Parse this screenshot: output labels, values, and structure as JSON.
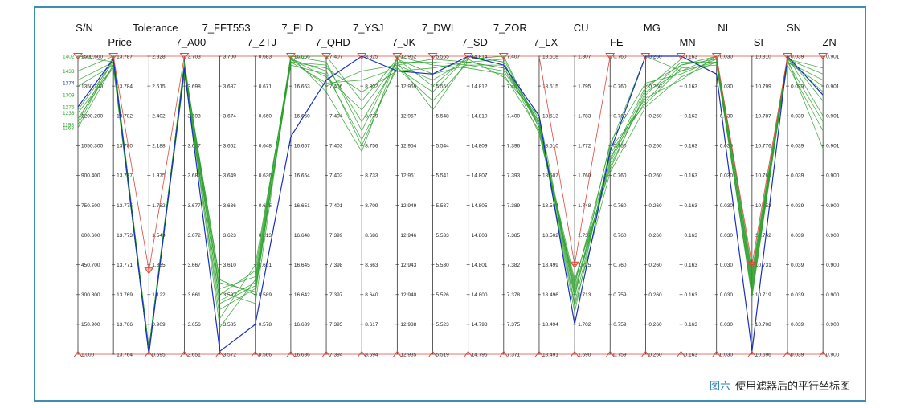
{
  "chart_data": {
    "type": "parallel-coordinates",
    "caption_figure": "图六",
    "caption_text": "使用滤器后的平行坐标图",
    "colors": {
      "selected": "#1a2fbf",
      "others": "#2aa02a",
      "filter": "#e0483a",
      "axis": "#333333"
    },
    "axes": [
      {
        "name": "S/N",
        "ticks": [
          "1500.600",
          "1350.100",
          "1200.200",
          "1050.300",
          "900.400",
          "750.500",
          "600.600",
          "450.700",
          "300.800",
          "150.900",
          "1.000"
        ],
        "extra_labels": [
          "1402",
          "1433",
          "1374",
          "1309",
          "1275",
          "1236",
          "1198",
          "1168"
        ],
        "filter_top": true,
        "filter_bottom": true
      },
      {
        "name": "Price",
        "ticks": [
          "13.787",
          "13.784",
          "13.782",
          "13.780",
          "13.777",
          "13.775",
          "13.773",
          "13.771",
          "13.769",
          "13.766",
          "13.764"
        ],
        "filter_top": true,
        "filter_bottom": false
      },
      {
        "name": "Tolerance",
        "ticks": [
          "2.828",
          "2.615",
          "2.402",
          "2.188",
          "1.975",
          "1.762",
          "1.549",
          "1.335",
          "1.122",
          "0.909",
          "0.695"
        ],
        "filter_top": false,
        "filter_mid": 0.72,
        "filter_bottom": true
      },
      {
        "name": "7_A00",
        "ticks": [
          "3.703",
          "3.698",
          "3.693",
          "3.687",
          "3.682",
          "3.677",
          "3.672",
          "3.667",
          "3.661",
          "3.656",
          "3.651"
        ],
        "filter_top": true,
        "filter_bottom": true
      },
      {
        "name": "7_FFT553",
        "ticks": [
          "3.700",
          "3.687",
          "3.674",
          "3.662",
          "3.649",
          "3.636",
          "3.623",
          "3.610",
          "3.597",
          "3.585",
          "3.572"
        ],
        "filter_top": false,
        "filter_bottom": true
      },
      {
        "name": "7_ZTJ",
        "ticks": [
          "0.683",
          "0.671",
          "0.660",
          "0.648",
          "0.636",
          "0.625",
          "0.613",
          "0.601",
          "0.589",
          "0.578",
          "0.566"
        ],
        "filter_top": false,
        "filter_bottom": true
      },
      {
        "name": "7_FLD",
        "ticks": [
          "16.666",
          "16.663",
          "16.660",
          "16.657",
          "16.654",
          "16.651",
          "16.648",
          "16.645",
          "16.642",
          "16.639",
          "16.636"
        ],
        "filter_top": true,
        "filter_bottom": true
      },
      {
        "name": "7_QHD",
        "ticks": [
          "7.407",
          "7.406",
          "7.404",
          "7.403",
          "7.402",
          "7.401",
          "7.399",
          "7.398",
          "7.397",
          "7.395",
          "7.394"
        ],
        "filter_top": true,
        "filter_bottom": true
      },
      {
        "name": "7_YSJ",
        "ticks": [
          "8.825",
          "8.802",
          "8.779",
          "8.756",
          "8.733",
          "8.709",
          "8.686",
          "8.663",
          "8.640",
          "8.617",
          "8.594"
        ],
        "filter_top": true,
        "filter_bottom": true
      },
      {
        "name": "7_JK",
        "ticks": [
          "12.962",
          "12.959",
          "12.957",
          "12.954",
          "12.951",
          "12.949",
          "12.946",
          "12.943",
          "12.940",
          "12.938",
          "12.935"
        ],
        "filter_top": true,
        "filter_bottom": true
      },
      {
        "name": "7_DWL",
        "ticks": [
          "5.555",
          "5.551",
          "5.548",
          "5.544",
          "5.541",
          "5.537",
          "5.533",
          "5.530",
          "5.526",
          "5.523",
          "5.519"
        ],
        "filter_top": true,
        "filter_bottom": true
      },
      {
        "name": "7_SD",
        "ticks": [
          "14.814",
          "14.812",
          "14.810",
          "14.809",
          "14.807",
          "14.805",
          "14.803",
          "14.801",
          "14.800",
          "14.798",
          "14.796"
        ],
        "filter_top": true,
        "filter_bottom": true
      },
      {
        "name": "7_ZOR",
        "ticks": [
          "7.407",
          "7.403",
          "7.400",
          "7.396",
          "7.393",
          "7.389",
          "7.385",
          "7.382",
          "7.378",
          "7.375",
          "7.371"
        ],
        "filter_top": true,
        "filter_bottom": true
      },
      {
        "name": "7_LX",
        "ticks": [
          "18.518",
          "18.515",
          "18.513",
          "18.510",
          "18.507",
          "18.504",
          "18.502",
          "18.499",
          "18.496",
          "18.494",
          "18.491"
        ],
        "filter_top": false,
        "filter_bottom": true
      },
      {
        "name": "CU",
        "ticks": [
          "1.807",
          "1.795",
          "1.783",
          "1.772",
          "1.760",
          "1.748",
          "1.737",
          "1.725",
          "1.713",
          "1.702",
          "1.690"
        ],
        "filter_top": false,
        "filter_mid": 0.7,
        "filter_bottom": true
      },
      {
        "name": "FE",
        "ticks": [
          "0.760",
          "0.760",
          "0.760",
          "0.760",
          "0.760",
          "0.760",
          "0.760",
          "0.760",
          "0.759",
          "0.759",
          "0.759"
        ],
        "filter_top": true,
        "filter_bottom": true
      },
      {
        "name": "MG",
        "ticks": [
          "0.260",
          "0.260",
          "0.260",
          "0.260",
          "0.260",
          "0.260",
          "0.260",
          "0.260",
          "0.260",
          "0.260",
          "0.260"
        ],
        "filter_top": true,
        "filter_bottom": true
      },
      {
        "name": "MN",
        "ticks": [
          "0.163",
          "0.163",
          "0.163",
          "0.163",
          "0.163",
          "0.163",
          "0.163",
          "0.163",
          "0.163",
          "0.163",
          "0.163"
        ],
        "filter_top": true,
        "filter_bottom": true
      },
      {
        "name": "NI",
        "ticks": [
          "0.030",
          "0.030",
          "0.030",
          "0.030",
          "0.030",
          "0.030",
          "0.030",
          "0.030",
          "0.030",
          "0.030",
          "0.030"
        ],
        "filter_top": true,
        "filter_bottom": true
      },
      {
        "name": "SI",
        "ticks": [
          "10.810",
          "10.799",
          "10.787",
          "10.776",
          "10.765",
          "10.753",
          "10.742",
          "10.731",
          "10.719",
          "10.708",
          "10.696"
        ],
        "filter_top": false,
        "filter_mid": 0.7,
        "filter_bottom": true
      },
      {
        "name": "SN",
        "ticks": [
          "0.039",
          "0.039",
          "0.039",
          "0.039",
          "0.039",
          "0.039",
          "0.039",
          "0.039",
          "0.039",
          "0.039",
          "0.039"
        ],
        "filter_top": true,
        "filter_bottom": true
      },
      {
        "name": "ZN",
        "ticks": [
          "0.901",
          "0.901",
          "0.901",
          "0.901",
          "0.900",
          "0.900",
          "0.900",
          "0.900",
          "0.900",
          "0.900",
          "0.900"
        ],
        "filter_top": true,
        "filter_bottom": true
      }
    ],
    "series": [
      {
        "selected": true,
        "values": [
          0.17,
          0.01,
          1.0,
          0.04,
          0.99,
          0.9,
          0.27,
          0.08,
          0.0,
          0.05,
          0.06,
          0.0,
          0.03,
          0.2,
          0.9,
          0.32,
          0.0,
          0.0,
          0.06,
          0.99,
          0.0,
          0.13
        ]
      },
      {
        "selected": false,
        "values": [
          0.0,
          0.02,
          0.99,
          0.03,
          0.78,
          0.74,
          0.0,
          0.0,
          0.15,
          0.01,
          0.1,
          0.0,
          0.02,
          0.24,
          0.77,
          0.3,
          0.0,
          0.05,
          0.0,
          0.72,
          0.01,
          0.04
        ]
      },
      {
        "selected": false,
        "values": [
          0.05,
          0.0,
          0.98,
          0.05,
          0.82,
          0.76,
          0.02,
          0.03,
          0.22,
          0.02,
          0.02,
          0.03,
          0.05,
          0.22,
          0.8,
          0.35,
          0.1,
          0.03,
          0.01,
          0.76,
          0.02,
          0.1
        ]
      },
      {
        "selected": false,
        "values": [
          0.1,
          0.03,
          1.0,
          0.02,
          0.8,
          0.72,
          0.01,
          0.1,
          0.05,
          0.03,
          0.08,
          0.01,
          0.0,
          0.24,
          0.75,
          0.38,
          0.12,
          0.05,
          0.02,
          0.8,
          0.0,
          0.2
        ]
      },
      {
        "selected": false,
        "values": [
          0.19,
          0.04,
          0.99,
          0.06,
          0.85,
          0.78,
          0.03,
          0.06,
          0.28,
          0.04,
          0.15,
          0.02,
          0.04,
          0.21,
          0.83,
          0.33,
          0.14,
          0.08,
          0.0,
          0.74,
          0.03,
          0.25
        ]
      },
      {
        "selected": false,
        "values": [
          0.21,
          0.03,
          1.0,
          0.04,
          0.75,
          0.8,
          0.0,
          0.12,
          0.32,
          0.0,
          0.03,
          0.04,
          0.06,
          0.25,
          0.78,
          0.36,
          0.11,
          0.01,
          0.01,
          0.78,
          0.01,
          0.31
        ]
      },
      {
        "selected": false,
        "values": [
          0.22,
          0.0,
          0.98,
          0.03,
          0.88,
          0.7,
          0.02,
          0.04,
          0.12,
          0.05,
          0.04,
          0.02,
          0.01,
          0.23,
          0.86,
          0.31,
          0.16,
          0.04,
          0.03,
          0.79,
          0.02,
          0.08
        ]
      },
      {
        "selected": false,
        "values": [
          0.08,
          0.02,
          1.0,
          0.05,
          0.79,
          0.83,
          0.01,
          0.07,
          0.18,
          0.02,
          0.18,
          0.01,
          0.07,
          0.2,
          0.79,
          0.37,
          0.13,
          0.02,
          0.02,
          0.75,
          0.0,
          0.15
        ]
      },
      {
        "selected": false,
        "values": [
          0.23,
          0.01,
          0.99,
          0.04,
          0.91,
          0.75,
          0.0,
          0.02,
          0.25,
          0.01,
          0.06,
          0.03,
          0.03,
          0.22,
          0.81,
          0.29,
          0.09,
          0.06,
          0.01,
          0.77,
          0.01,
          0.06
        ]
      },
      {
        "selected": false,
        "values": [
          0.24,
          0.03,
          1.0,
          0.02,
          0.83,
          0.77,
          0.02,
          0.09,
          0.08,
          0.04,
          0.12,
          0.0,
          0.02,
          0.26,
          0.76,
          0.34,
          0.15,
          0.03,
          0.0,
          0.73,
          0.02,
          0.22
        ]
      },
      {
        "selected": false,
        "values": [
          0.18,
          0.02,
          0.98,
          0.03,
          0.76,
          0.79,
          0.01,
          0.05,
          0.3,
          0.03,
          0.01,
          0.02,
          0.04,
          0.23,
          0.84,
          0.39,
          0.17,
          0.07,
          0.02,
          0.81,
          0.01,
          0.12
        ]
      }
    ]
  }
}
